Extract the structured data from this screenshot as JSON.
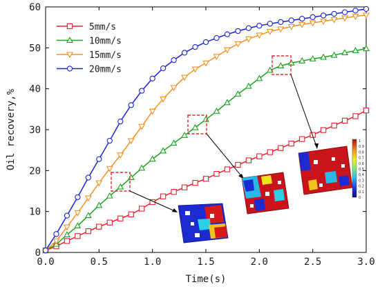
{
  "chart_data": {
    "type": "line",
    "xlabel": "Time(s)",
    "ylabel": "Oil recovery,%",
    "xlim": [
      0,
      3.0
    ],
    "ylim": [
      0,
      60
    ],
    "x_ticks": [
      "0.0",
      "0.5",
      "1.0",
      "1.5",
      "2.0",
      "2.5",
      "3.0"
    ],
    "y_ticks": [
      "0",
      "10",
      "20",
      "30",
      "40",
      "50",
      "60"
    ],
    "legend_position": "top-left",
    "grid": false,
    "series": [
      {
        "name": "5mm/s",
        "color": "#e8202a",
        "marker": "square",
        "x": [
          0.0,
          0.1,
          0.2,
          0.3,
          0.4,
          0.5,
          0.6,
          0.7,
          0.8,
          0.9,
          1.0,
          1.1,
          1.2,
          1.3,
          1.4,
          1.5,
          1.6,
          1.7,
          1.8,
          1.9,
          2.0,
          2.1,
          2.2,
          2.3,
          2.4,
          2.5,
          2.6,
          2.7,
          2.8,
          2.9,
          3.0
        ],
        "y": [
          0.5,
          1.5,
          2.8,
          4.0,
          5.2,
          6.3,
          7.3,
          8.3,
          9.3,
          10.7,
          12.3,
          13.7,
          14.8,
          15.9,
          17.0,
          18.0,
          19.2,
          20.3,
          21.4,
          22.5,
          23.5,
          24.5,
          25.5,
          26.6,
          27.7,
          28.7,
          29.9,
          31.0,
          32.2,
          33.3,
          34.7
        ]
      },
      {
        "name": "10mm/s",
        "color": "#18a21c",
        "marker": "triangle-up",
        "x": [
          0.0,
          0.1,
          0.2,
          0.3,
          0.4,
          0.5,
          0.6,
          0.7,
          0.8,
          0.9,
          1.0,
          1.1,
          1.2,
          1.3,
          1.4,
          1.5,
          1.6,
          1.7,
          1.8,
          1.9,
          2.0,
          2.1,
          2.2,
          2.3,
          2.4,
          2.5,
          2.6,
          2.7,
          2.8,
          2.9,
          3.0
        ],
        "y": [
          0.5,
          2.0,
          4.3,
          6.5,
          9.0,
          11.5,
          13.8,
          16.0,
          18.3,
          20.6,
          22.8,
          24.8,
          26.7,
          28.6,
          30.5,
          32.5,
          34.5,
          36.6,
          38.7,
          40.6,
          42.5,
          44.5,
          45.6,
          46.3,
          46.8,
          47.3,
          47.7,
          48.2,
          48.8,
          49.3,
          49.8
        ]
      },
      {
        "name": "15mm/s",
        "color": "#f5901e",
        "marker": "triangle-down",
        "x": [
          0.0,
          0.1,
          0.2,
          0.3,
          0.4,
          0.5,
          0.6,
          0.7,
          0.8,
          0.9,
          1.0,
          1.1,
          1.2,
          1.3,
          1.4,
          1.5,
          1.6,
          1.7,
          1.8,
          1.9,
          2.0,
          2.1,
          2.2,
          2.3,
          2.4,
          2.5,
          2.6,
          2.7,
          2.8,
          2.9,
          3.0
        ],
        "y": [
          0.5,
          2.8,
          6.2,
          9.7,
          13.3,
          17.0,
          20.5,
          23.8,
          27.3,
          30.8,
          34.5,
          37.5,
          40.3,
          42.8,
          44.8,
          46.3,
          47.9,
          49.5,
          51.0,
          52.2,
          53.1,
          54.0,
          54.6,
          55.2,
          55.7,
          56.1,
          56.5,
          56.9,
          57.3,
          57.7,
          58.0
        ]
      },
      {
        "name": "20mm/s",
        "color": "#1a22d8",
        "marker": "circle",
        "x": [
          0.0,
          0.1,
          0.2,
          0.3,
          0.4,
          0.5,
          0.6,
          0.7,
          0.8,
          0.9,
          1.0,
          1.1,
          1.2,
          1.3,
          1.4,
          1.5,
          1.6,
          1.7,
          1.8,
          1.9,
          2.0,
          2.1,
          2.2,
          2.3,
          2.4,
          2.5,
          2.6,
          2.7,
          2.8,
          2.9,
          3.0
        ],
        "y": [
          0.5,
          4.5,
          9.0,
          13.5,
          18.3,
          22.8,
          27.3,
          32.0,
          36.0,
          39.5,
          42.5,
          45.0,
          47.0,
          48.8,
          50.2,
          51.4,
          52.4,
          53.3,
          54.1,
          54.8,
          55.4,
          55.9,
          56.3,
          56.7,
          57.1,
          57.5,
          57.9,
          58.3,
          58.7,
          59.1,
          59.5
        ]
      }
    ],
    "colorbar_ticks": [
      "1",
      "0.9",
      "0.8",
      "0.7",
      "0.6",
      "0.5",
      "0.4",
      "0.3",
      "0.2",
      "0.1",
      "0"
    ]
  }
}
